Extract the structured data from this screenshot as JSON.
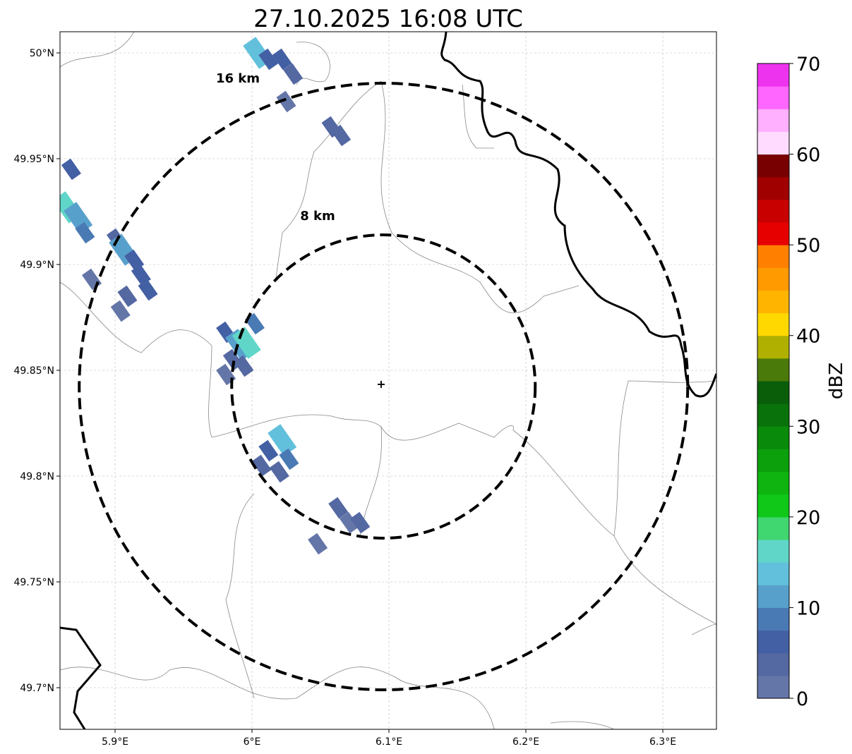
{
  "chart_data": {
    "type": "heatmap",
    "title": "27.10.2025 16:08 UTC",
    "xlabel": "",
    "ylabel": "",
    "xlim": [
      5.86,
      6.34
    ],
    "ylim": [
      49.68,
      50.01
    ],
    "x_ticks": [
      {
        "v": 5.9,
        "label": "5.9°E"
      },
      {
        "v": 6.0,
        "label": "6°E"
      },
      {
        "v": 6.1,
        "label": "6.1°E"
      },
      {
        "v": 6.2,
        "label": "6.2°E"
      },
      {
        "v": 6.3,
        "label": "6.3°E"
      }
    ],
    "y_ticks": [
      {
        "v": 50.0,
        "label": "50°N"
      },
      {
        "v": 49.95,
        "label": "49.95°N"
      },
      {
        "v": 49.9,
        "label": "49.9°N"
      },
      {
        "v": 49.85,
        "label": "49.85°N"
      },
      {
        "v": 49.8,
        "label": "49.8°N"
      },
      {
        "v": 49.75,
        "label": "49.75°N"
      },
      {
        "v": 49.7,
        "label": "49.7°N"
      }
    ],
    "grid": true,
    "radar_center": {
      "lon": 6.096,
      "lat": 49.843
    },
    "range_rings": [
      {
        "label": "8 km",
        "km": 8
      },
      {
        "label": "16 km",
        "km": 16
      }
    ],
    "colorbar": {
      "label": "dBZ",
      "min": 0,
      "max": 70,
      "step": 2.5,
      "ticks": [
        "0",
        "10",
        "20",
        "30",
        "40",
        "50",
        "60",
        "70"
      ],
      "colors": [
        "#6476a8",
        "#5468a2",
        "#4460a4",
        "#4a7ab4",
        "#58a0cc",
        "#62c0dc",
        "#60d6c8",
        "#40d670",
        "#10c818",
        "#10b410",
        "#0ca00c",
        "#0a8a0a",
        "#0a720a",
        "#0a5e0a",
        "#4a7a0a",
        "#b0b000",
        "#ffd800",
        "#ffb400",
        "#ff9a00",
        "#ff8000",
        "#e60000",
        "#c80000",
        "#a00000",
        "#780000",
        "#ffdcff",
        "#ffb0ff",
        "#ff66ff",
        "#ee33ee"
      ]
    },
    "echoes": [
      {
        "lon": 6.004,
        "lat": 50.0,
        "dbz": 14
      },
      {
        "lon": 6.012,
        "lat": 49.997,
        "dbz": 5
      },
      {
        "lon": 6.022,
        "lat": 49.997,
        "dbz": 5
      },
      {
        "lon": 6.03,
        "lat": 49.99,
        "dbz": 4
      },
      {
        "lon": 6.025,
        "lat": 49.977,
        "dbz": 2
      },
      {
        "lon": 6.058,
        "lat": 49.965,
        "dbz": 3
      },
      {
        "lon": 6.065,
        "lat": 49.961,
        "dbz": 3
      },
      {
        "lon": 5.868,
        "lat": 49.945,
        "dbz": 6
      },
      {
        "lon": 5.865,
        "lat": 49.927,
        "dbz": 16
      },
      {
        "lon": 5.873,
        "lat": 49.922,
        "dbz": 12
      },
      {
        "lon": 5.878,
        "lat": 49.915,
        "dbz": 8
      },
      {
        "lon": 5.901,
        "lat": 49.912,
        "dbz": 4
      },
      {
        "lon": 5.906,
        "lat": 49.907,
        "dbz": 11
      },
      {
        "lon": 5.914,
        "lat": 49.902,
        "dbz": 6
      },
      {
        "lon": 5.919,
        "lat": 49.895,
        "dbz": 5
      },
      {
        "lon": 5.909,
        "lat": 49.885,
        "dbz": 3
      },
      {
        "lon": 5.904,
        "lat": 49.878,
        "dbz": 2
      },
      {
        "lon": 5.924,
        "lat": 49.888,
        "dbz": 5
      },
      {
        "lon": 5.883,
        "lat": 49.893,
        "dbz": 2
      },
      {
        "lon": 5.981,
        "lat": 49.868,
        "dbz": 6
      },
      {
        "lon": 5.991,
        "lat": 49.862,
        "dbz": 12
      },
      {
        "lon": 5.996,
        "lat": 49.863,
        "dbz": 15
      },
      {
        "lon": 6.002,
        "lat": 49.872,
        "dbz": 8
      },
      {
        "lon": 5.986,
        "lat": 49.855,
        "dbz": 4
      },
      {
        "lon": 5.994,
        "lat": 49.852,
        "dbz": 3
      },
      {
        "lon": 5.981,
        "lat": 49.848,
        "dbz": 2
      },
      {
        "lon": 6.012,
        "lat": 49.812,
        "dbz": 6
      },
      {
        "lon": 6.022,
        "lat": 49.817,
        "dbz": 13
      },
      {
        "lon": 6.027,
        "lat": 49.808,
        "dbz": 8
      },
      {
        "lon": 6.02,
        "lat": 49.802,
        "dbz": 4
      },
      {
        "lon": 6.007,
        "lat": 49.805,
        "dbz": 3
      },
      {
        "lon": 6.063,
        "lat": 49.785,
        "dbz": 3
      },
      {
        "lon": 6.071,
        "lat": 49.778,
        "dbz": 2
      },
      {
        "lon": 6.079,
        "lat": 49.778,
        "dbz": 4
      },
      {
        "lon": 6.048,
        "lat": 49.768,
        "dbz": 2
      }
    ]
  }
}
